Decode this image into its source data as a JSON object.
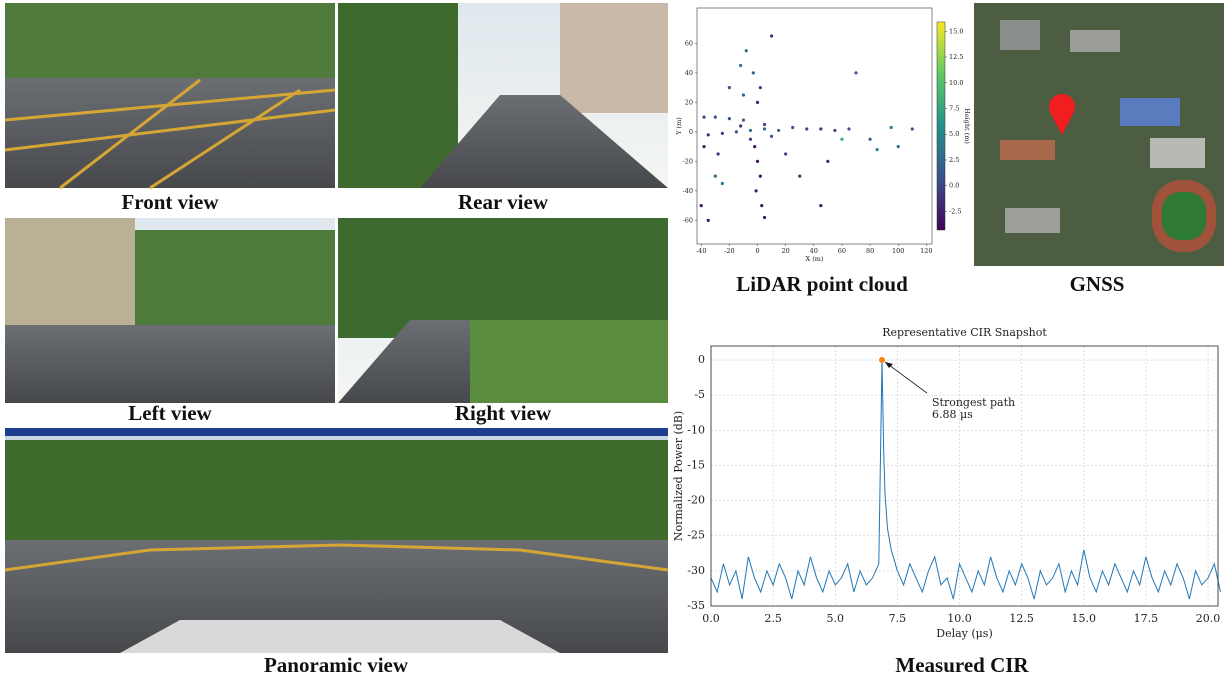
{
  "panels": {
    "front": "Front view",
    "rear": "Rear view",
    "left": "Left view",
    "right": "Right view",
    "panoramic": "Panoramic view",
    "lidar": "LiDAR point cloud",
    "gnss": "GNSS",
    "cir": "Measured CIR"
  },
  "chart_data": [
    {
      "type": "scatter",
      "xlabel": "X (m)",
      "ylabel": "Y (m)",
      "xlim": [
        -43,
        124
      ],
      "ylim": [
        -76,
        84
      ],
      "xticks": [
        -40,
        -20,
        0,
        20,
        40,
        60,
        80,
        100,
        120
      ],
      "yticks": [
        -60,
        -40,
        -20,
        0,
        20,
        40,
        60
      ],
      "colormap": "viridis",
      "colorbar": {
        "label": "Height (m)",
        "lim": [
          -4.3,
          15.9
        ],
        "ticks": [
          -2.5,
          {
            "value": 0,
            "label": "0.0"
          },
          2.5,
          {
            "value": 5,
            "label": "5.0"
          },
          7.5,
          {
            "value": 10,
            "label": "10.0"
          },
          12.5,
          {
            "value": 15,
            "label": "15.0"
          }
        ]
      },
      "x": [
        -38,
        -30,
        -20,
        -10,
        -35,
        -25,
        -15,
        -5,
        5,
        15,
        25,
        35,
        45,
        55,
        65,
        80,
        95,
        100,
        110,
        -38,
        -28,
        -30,
        -25,
        0,
        2,
        -1,
        3,
        5,
        -2,
        0,
        2,
        -3,
        -8,
        -12,
        10,
        -40,
        -35,
        30,
        20,
        -20,
        -10,
        50,
        60,
        45,
        70,
        85,
        -5,
        5,
        10,
        -12
      ],
      "y": [
        10,
        10,
        9,
        8,
        -2,
        -1,
        0,
        1,
        2,
        1,
        3,
        2,
        2,
        1,
        2,
        -5,
        3,
        -10,
        2,
        -10,
        -15,
        -30,
        -35,
        -20,
        -30,
        -40,
        -50,
        -58,
        -10,
        20,
        30,
        40,
        55,
        45,
        65,
        -50,
        -60,
        -30,
        -15,
        30,
        25,
        -20,
        -5,
        -50,
        40,
        -12,
        -5,
        5,
        -3,
        4
      ],
      "heights": [
        0,
        0.5,
        1,
        2,
        -1,
        0,
        1,
        3,
        3,
        2,
        1,
        0,
        -1,
        0,
        1,
        2,
        4,
        3,
        1,
        -2,
        -1,
        3,
        4,
        -3,
        -3,
        -2.5,
        -3,
        -3,
        -3,
        -2,
        0,
        2,
        3,
        4,
        -1,
        -3,
        -3,
        -1,
        0,
        1,
        2,
        -2,
        8,
        -3,
        1,
        5,
        0,
        0,
        1,
        -1
      ]
    },
    {
      "type": "line",
      "title": "Representative CIR Snapshot",
      "xlabel": "Delay (μs)",
      "ylabel": "Normalized Power (dB)",
      "xlim": [
        0,
        20.4
      ],
      "ylim": [
        -35,
        2
      ],
      "grid": true,
      "color": "#1f77b4",
      "xticks": [
        {
          "value": 0,
          "label": "0.0"
        },
        2.5,
        {
          "value": 5,
          "label": "5.0"
        },
        7.5,
        {
          "value": 10,
          "label": "10.0"
        },
        12.5,
        {
          "value": 15,
          "label": "15.0"
        },
        17.5,
        {
          "value": 20,
          "label": "20.0"
        }
      ],
      "yticks": [
        0,
        -5,
        -10,
        -15,
        -20,
        -25,
        -30,
        -35
      ],
      "x": [
        0,
        0.25,
        0.5,
        0.75,
        1,
        1.25,
        1.5,
        1.75,
        2,
        2.25,
        2.5,
        2.75,
        3,
        3.25,
        3.5,
        3.75,
        4,
        4.25,
        4.5,
        4.75,
        5,
        5.25,
        5.5,
        5.75,
        6,
        6.25,
        6.5,
        6.75,
        6.88,
        6.95,
        7.0,
        7.1,
        7.25,
        7.5,
        7.75,
        8,
        8.25,
        8.5,
        8.75,
        9,
        9.25,
        9.5,
        9.75,
        10,
        10.25,
        10.5,
        10.75,
        11,
        11.25,
        11.5,
        11.75,
        12,
        12.25,
        12.5,
        12.75,
        13,
        13.25,
        13.5,
        13.75,
        14,
        14.25,
        14.5,
        14.75,
        15,
        15.25,
        15.5,
        15.75,
        16,
        16.25,
        16.5,
        16.75,
        17,
        17.25,
        17.5,
        17.75,
        18,
        18.25,
        18.5,
        18.75,
        19,
        19.25,
        19.5,
        19.75,
        20,
        20.25,
        20.5
      ],
      "values": [
        -31,
        -33,
        -29,
        -32,
        -30,
        -34,
        -28,
        -31,
        -33,
        -30,
        -32,
        -29,
        -31,
        -34,
        -30,
        -32,
        -28,
        -31,
        -33,
        -30,
        -32,
        -31,
        -29,
        -33,
        -30,
        -32,
        -31,
        -29,
        0,
        -13,
        -19,
        -24,
        -27,
        -30,
        -32,
        -29,
        -31,
        -33,
        -30,
        -28,
        -32,
        -31,
        -34,
        -29,
        -31,
        -33,
        -30,
        -32,
        -28,
        -31,
        -33,
        -30,
        -32,
        -29,
        -31,
        -34,
        -30,
        -32,
        -31,
        -29,
        -33,
        -30,
        -32,
        -27,
        -31,
        -33,
        -30,
        -32,
        -29,
        -31,
        -33,
        -30,
        -32,
        -28,
        -31,
        -33,
        -30,
        -32,
        -29,
        -31,
        -34,
        -30,
        -32,
        -31,
        -29,
        -33
      ],
      "annotation": {
        "text": [
          "Strongest path",
          "6.88 μs"
        ],
        "x": 6.88,
        "y": 0,
        "color": "#ff7f0e"
      }
    }
  ]
}
